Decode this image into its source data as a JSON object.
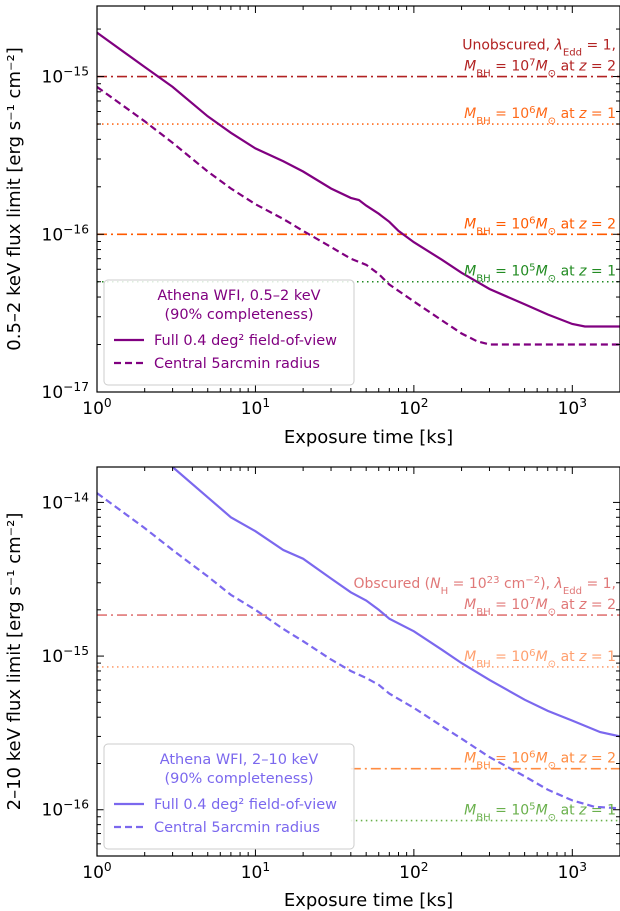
{
  "chart_data": [
    {
      "type": "line",
      "xscale": "log",
      "yscale": "log",
      "xlim": [
        1,
        2000
      ],
      "ylim": [
        1e-17,
        2.8e-15
      ],
      "xlabel": "Exposure time [ks]",
      "ylabel": "0.5–2 keV flux limit [erg s⁻¹ cm⁻²]",
      "xticks": [
        {
          "v": 1,
          "b": "10",
          "e": "0"
        },
        {
          "v": 10,
          "b": "10",
          "e": "1"
        },
        {
          "v": 100,
          "b": "10",
          "e": "2"
        },
        {
          "v": 1000,
          "b": "10",
          "e": "3"
        }
      ],
      "yticks": [
        {
          "v": 1e-17,
          "b": "10",
          "e": "−17"
        },
        {
          "v": 1e-16,
          "b": "10",
          "e": "−16"
        },
        {
          "v": 1e-15,
          "b": "10",
          "e": "−15"
        }
      ],
      "series": [
        {
          "name": "Full 0.4 deg² field-of-view",
          "style": "solid",
          "color": "#800080",
          "x": [
            1,
            2,
            3,
            5,
            7,
            10,
            15,
            20,
            30,
            40,
            45,
            50,
            60,
            70,
            80,
            100,
            150,
            200,
            300,
            500,
            700,
            1000,
            1200,
            1500,
            2000
          ],
          "y": [
            1.9e-15,
            1.15e-15,
            8.6e-16,
            5.6e-16,
            4.4e-16,
            3.5e-16,
            2.9e-16,
            2.5e-16,
            1.95e-16,
            1.7e-16,
            1.65e-16,
            1.52e-16,
            1.35e-16,
            1.2e-16,
            1.05e-16,
            8.9e-17,
            6.9e-17,
            5.7e-17,
            4.5e-17,
            3.6e-17,
            3.1e-17,
            2.7e-17,
            2.6e-17,
            2.6e-17,
            2.6e-17
          ]
        },
        {
          "name": "Central 5arcmin radius",
          "style": "dashed",
          "color": "#800080",
          "x": [
            1,
            2,
            3,
            5,
            7,
            10,
            15,
            20,
            30,
            40,
            50,
            60,
            70,
            100,
            150,
            200,
            250,
            300,
            500,
            1000,
            2000
          ],
          "y": [
            8.6e-16,
            5.2e-16,
            3.8e-16,
            2.5e-16,
            1.95e-16,
            1.55e-16,
            1.25e-16,
            1.05e-16,
            8.3e-17,
            7e-17,
            6.4e-17,
            5.6e-17,
            4.8e-17,
            3.75e-17,
            2.85e-17,
            2.35e-17,
            2.1e-17,
            2e-17,
            2e-17,
            2e-17,
            2e-17
          ]
        }
      ],
      "hlines": [
        {
          "y": 1e-15,
          "style": "dashdot",
          "color": "#b22222",
          "label_lines": [
            [
              {
                "t": "Unobscured, "
              },
              {
                "t": "λ",
                "i": true
              },
              {
                "t": "Edd",
                "sub": true
              },
              {
                "t": " = 1,"
              }
            ],
            [
              {
                "t": "M",
                "i": true
              },
              {
                "t": "BH",
                "sub": true
              },
              {
                "t": " = 10"
              },
              {
                "t": "7",
                "sup": true
              },
              {
                "t": "M",
                "i": true
              },
              {
                "t": "⊙",
                "sub": true
              },
              {
                "t": " at "
              },
              {
                "t": "z",
                "i": true
              },
              {
                "t": " = 2"
              }
            ]
          ]
        },
        {
          "y": 5e-16,
          "style": "dotted",
          "color": "#ff6a1a",
          "label_lines": [
            [
              {
                "t": "M",
                "i": true
              },
              {
                "t": "BH",
                "sub": true
              },
              {
                "t": " = 10"
              },
              {
                "t": "6",
                "sup": true
              },
              {
                "t": "M",
                "i": true
              },
              {
                "t": "⊙",
                "sub": true
              },
              {
                "t": " at "
              },
              {
                "t": "z",
                "i": true
              },
              {
                "t": " = 1"
              }
            ]
          ]
        },
        {
          "y": 1e-16,
          "style": "dashdot",
          "color": "#ff5a00",
          "label_lines": [
            [
              {
                "t": "M",
                "i": true
              },
              {
                "t": "BH",
                "sub": true
              },
              {
                "t": " = 10"
              },
              {
                "t": "6",
                "sup": true
              },
              {
                "t": "M",
                "i": true
              },
              {
                "t": "⊙",
                "sub": true
              },
              {
                "t": " at "
              },
              {
                "t": "z",
                "i": true
              },
              {
                "t": " = 2"
              }
            ]
          ]
        },
        {
          "y": 5e-17,
          "style": "dotted",
          "color": "#228b22",
          "label_lines": [
            [
              {
                "t": "M",
                "i": true
              },
              {
                "t": "BH",
                "sub": true
              },
              {
                "t": " = 10"
              },
              {
                "t": "5",
                "sup": true
              },
              {
                "t": "M",
                "i": true
              },
              {
                "t": "⊙",
                "sub": true
              },
              {
                "t": " at "
              },
              {
                "t": "z",
                "i": true
              },
              {
                "t": " = 1"
              }
            ]
          ]
        }
      ],
      "legend": {
        "placement": "lower-left",
        "color": "#800080",
        "title_lines": [
          "Athena WFI, 0.5–2 keV",
          "(90% completeness)"
        ],
        "entries": [
          {
            "label": "Full 0.4 deg² field-of-view",
            "style": "solid"
          },
          {
            "label": "Central 5arcmin radius",
            "style": "dashed"
          }
        ]
      }
    },
    {
      "type": "line",
      "xscale": "log",
      "yscale": "log",
      "xlim": [
        1,
        2000
      ],
      "ylim": [
        5e-17,
        1.7e-14
      ],
      "xlabel": "Exposure time [ks]",
      "ylabel": "2–10 keV flux limit [erg s⁻¹ cm⁻²]",
      "xticks": [
        {
          "v": 1,
          "b": "10",
          "e": "0"
        },
        {
          "v": 10,
          "b": "10",
          "e": "1"
        },
        {
          "v": 100,
          "b": "10",
          "e": "2"
        },
        {
          "v": 1000,
          "b": "10",
          "e": "3"
        }
      ],
      "yticks": [
        {
          "v": 1e-16,
          "b": "10",
          "e": "−16"
        },
        {
          "v": 1e-15,
          "b": "10",
          "e": "−15"
        },
        {
          "v": 1e-14,
          "b": "10",
          "e": "−14"
        }
      ],
      "series": [
        {
          "name": "Full 0.4 deg² field-of-view",
          "style": "solid",
          "color": "#7b68ee",
          "x": [
            3,
            5,
            7,
            10,
            15,
            20,
            30,
            40,
            50,
            60,
            70,
            100,
            150,
            200,
            300,
            500,
            700,
            1000,
            1500,
            2000
          ],
          "y": [
            1.7e-14,
            1.08e-14,
            8e-15,
            6.5e-15,
            4.9e-15,
            4.3e-15,
            3.2e-15,
            2.6e-15,
            2.3e-15,
            2e-15,
            1.75e-15,
            1.45e-15,
            1.1e-15,
            9e-16,
            7e-16,
            5.2e-16,
            4.4e-16,
            3.8e-16,
            3.2e-16,
            3e-16
          ]
        },
        {
          "name": "Central 5arcmin radius",
          "style": "dashed",
          "color": "#7b68ee",
          "x": [
            1,
            2,
            3,
            5,
            7,
            10,
            15,
            20,
            30,
            40,
            50,
            60,
            70,
            100,
            150,
            200,
            300,
            500,
            700,
            1000,
            1400,
            1500,
            2000
          ],
          "y": [
            1.15e-14,
            6.8e-15,
            4.9e-15,
            3.3e-15,
            2.5e-15,
            2e-15,
            1.5e-15,
            1.25e-15,
            9.5e-16,
            8e-16,
            7.2e-16,
            6.5e-16,
            5.7e-16,
            4.6e-16,
            3.5e-16,
            2.9e-16,
            2.2e-16,
            1.65e-16,
            1.35e-16,
            1.15e-16,
            1.04e-16,
            1.04e-16,
            1.02e-16
          ]
        }
      ],
      "hlines": [
        {
          "y": 1.85e-15,
          "style": "dashdot",
          "color": "#e07878",
          "label_lines": [
            [
              {
                "t": "Obscured ("
              },
              {
                "t": "N",
                "i": true
              },
              {
                "t": "H",
                "sub": true
              },
              {
                "t": " = 10"
              },
              {
                "t": "23",
                "sup": true
              },
              {
                "t": " cm"
              },
              {
                "t": "−2",
                "sup": true
              },
              {
                "t": "), "
              },
              {
                "t": "λ",
                "i": true
              },
              {
                "t": "Edd",
                "sub": true
              },
              {
                "t": " = 1,"
              }
            ],
            [
              {
                "t": "M",
                "i": true
              },
              {
                "t": "BH",
                "sub": true
              },
              {
                "t": " = 10"
              },
              {
                "t": "7",
                "sup": true
              },
              {
                "t": "M",
                "i": true
              },
              {
                "t": "⊙",
                "sub": true
              },
              {
                "t": " at "
              },
              {
                "t": "z",
                "i": true
              },
              {
                "t": " = 2"
              }
            ]
          ]
        },
        {
          "y": 8.5e-16,
          "style": "dotted",
          "color": "#ffa070",
          "label_lines": [
            [
              {
                "t": "M",
                "i": true
              },
              {
                "t": "BH",
                "sub": true
              },
              {
                "t": " = 10"
              },
              {
                "t": "6",
                "sup": true
              },
              {
                "t": "M",
                "i": true
              },
              {
                "t": "⊙",
                "sub": true
              },
              {
                "t": " at "
              },
              {
                "t": "z",
                "i": true
              },
              {
                "t": " = 1"
              }
            ]
          ]
        },
        {
          "y": 1.85e-16,
          "style": "dashdot",
          "color": "#ff8c42",
          "xmin": 40,
          "label_lines": [
            [
              {
                "t": "M",
                "i": true
              },
              {
                "t": "BH",
                "sub": true
              },
              {
                "t": " = 10"
              },
              {
                "t": "6",
                "sup": true
              },
              {
                "t": "M",
                "i": true
              },
              {
                "t": "⊙",
                "sub": true
              },
              {
                "t": " at "
              },
              {
                "t": "z",
                "i": true
              },
              {
                "t": " = 2"
              }
            ]
          ]
        },
        {
          "y": 8.5e-17,
          "style": "dotted",
          "color": "#6ab04c",
          "xmin": 40,
          "label_lines": [
            [
              {
                "t": "M",
                "i": true
              },
              {
                "t": "BH",
                "sub": true
              },
              {
                "t": " = 10"
              },
              {
                "t": "5",
                "sup": true
              },
              {
                "t": "M",
                "i": true
              },
              {
                "t": "⊙",
                "sub": true
              },
              {
                "t": " at "
              },
              {
                "t": "z",
                "i": true
              },
              {
                "t": " = 1"
              }
            ]
          ]
        }
      ],
      "legend": {
        "placement": "lower-left",
        "color": "#7b68ee",
        "title_lines": [
          "Athena WFI, 2–10 keV",
          "(90% completeness)"
        ],
        "entries": [
          {
            "label": "Full 0.4 deg² field-of-view",
            "style": "solid"
          },
          {
            "label": "Central 5arcmin radius",
            "style": "dashed"
          }
        ]
      }
    }
  ]
}
